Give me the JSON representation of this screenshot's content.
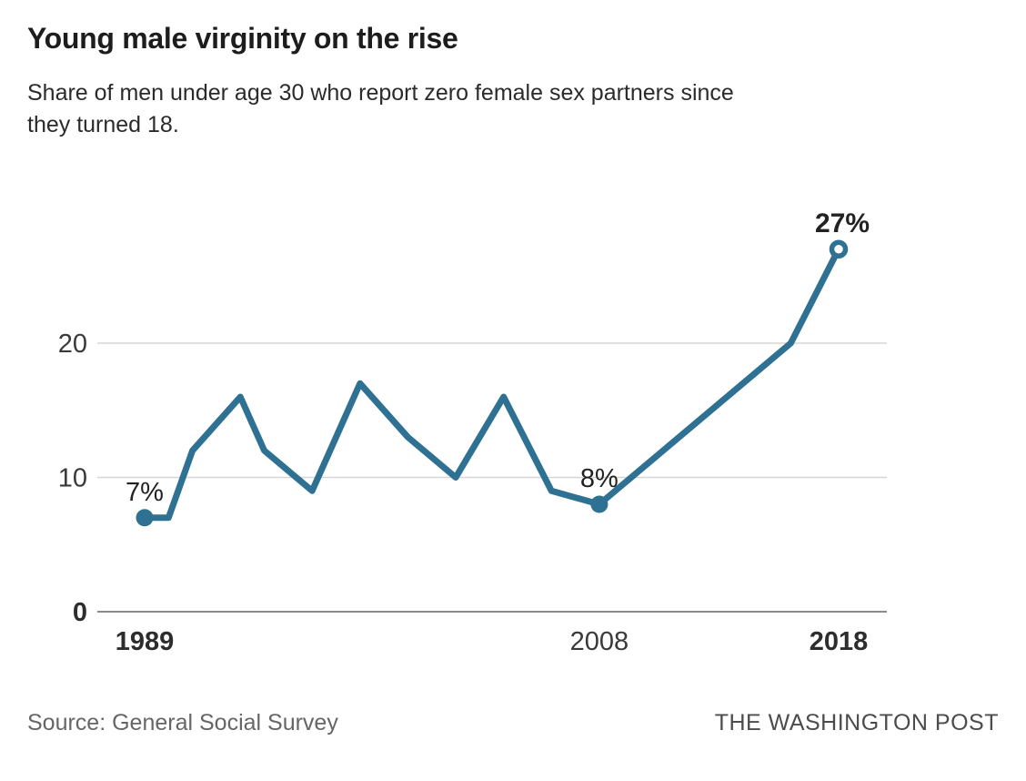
{
  "chart_data": {
    "type": "line",
    "title": "Young male virginity on the rise",
    "subtitle": "Share of men under age 30 who report zero female sex partners since they turned 18.",
    "subtitle_lines": [
      "Share of men under age 30 who report zero female sex partners since",
      "they turned 18."
    ],
    "unit": "percent",
    "x": [
      1989,
      1990,
      1991,
      1993,
      1994,
      1996,
      1998,
      2000,
      2002,
      2004,
      2006,
      2008,
      2016,
      2018
    ],
    "values": [
      7,
      7,
      12,
      16,
      12,
      9,
      17,
      13,
      10,
      16,
      9,
      8,
      20,
      27
    ],
    "series_name": "Share of men under 30 reporting zero female sex partners since age 18",
    "xlim": [
      1989,
      2018
    ],
    "ylim": [
      0,
      30
    ],
    "grid": "horizontal",
    "legend": "none",
    "y_ticks": [
      {
        "value": 0,
        "label": "0",
        "bold": true
      },
      {
        "value": 10,
        "label": "10",
        "bold": false
      },
      {
        "value": 20,
        "label": "20",
        "bold": false
      }
    ],
    "x_ticks": [
      {
        "year": 1989,
        "label": "1989",
        "bold": true
      },
      {
        "year": 2008,
        "label": "2008",
        "bold": false
      },
      {
        "year": 2018,
        "label": "2018",
        "bold": true
      }
    ],
    "annotations": [
      {
        "year": 1989,
        "value": 7,
        "label": "7%",
        "marker": "filled",
        "bold": false
      },
      {
        "year": 2008,
        "value": 8,
        "label": "8%",
        "marker": "filled",
        "bold": false
      },
      {
        "year": 2018,
        "value": 27,
        "label": "27%",
        "marker": "open",
        "bold": true
      }
    ]
  },
  "colors": {
    "accent": "#2f7193",
    "gridline": "#d6d6d6",
    "axis": "#8a8a8a",
    "tick_label": "#3a3a3a",
    "tick_label_bold": "#2d2d2d",
    "annotation_label": "#222222",
    "title": "#1d1d1d",
    "subtitle": "#2b2b2b",
    "source": "#666666",
    "brand": "#4c4c4c",
    "background": "#ffffff"
  },
  "footer": {
    "source": "Source: General Social Survey",
    "brand": "THE WASHINGTON POST"
  }
}
